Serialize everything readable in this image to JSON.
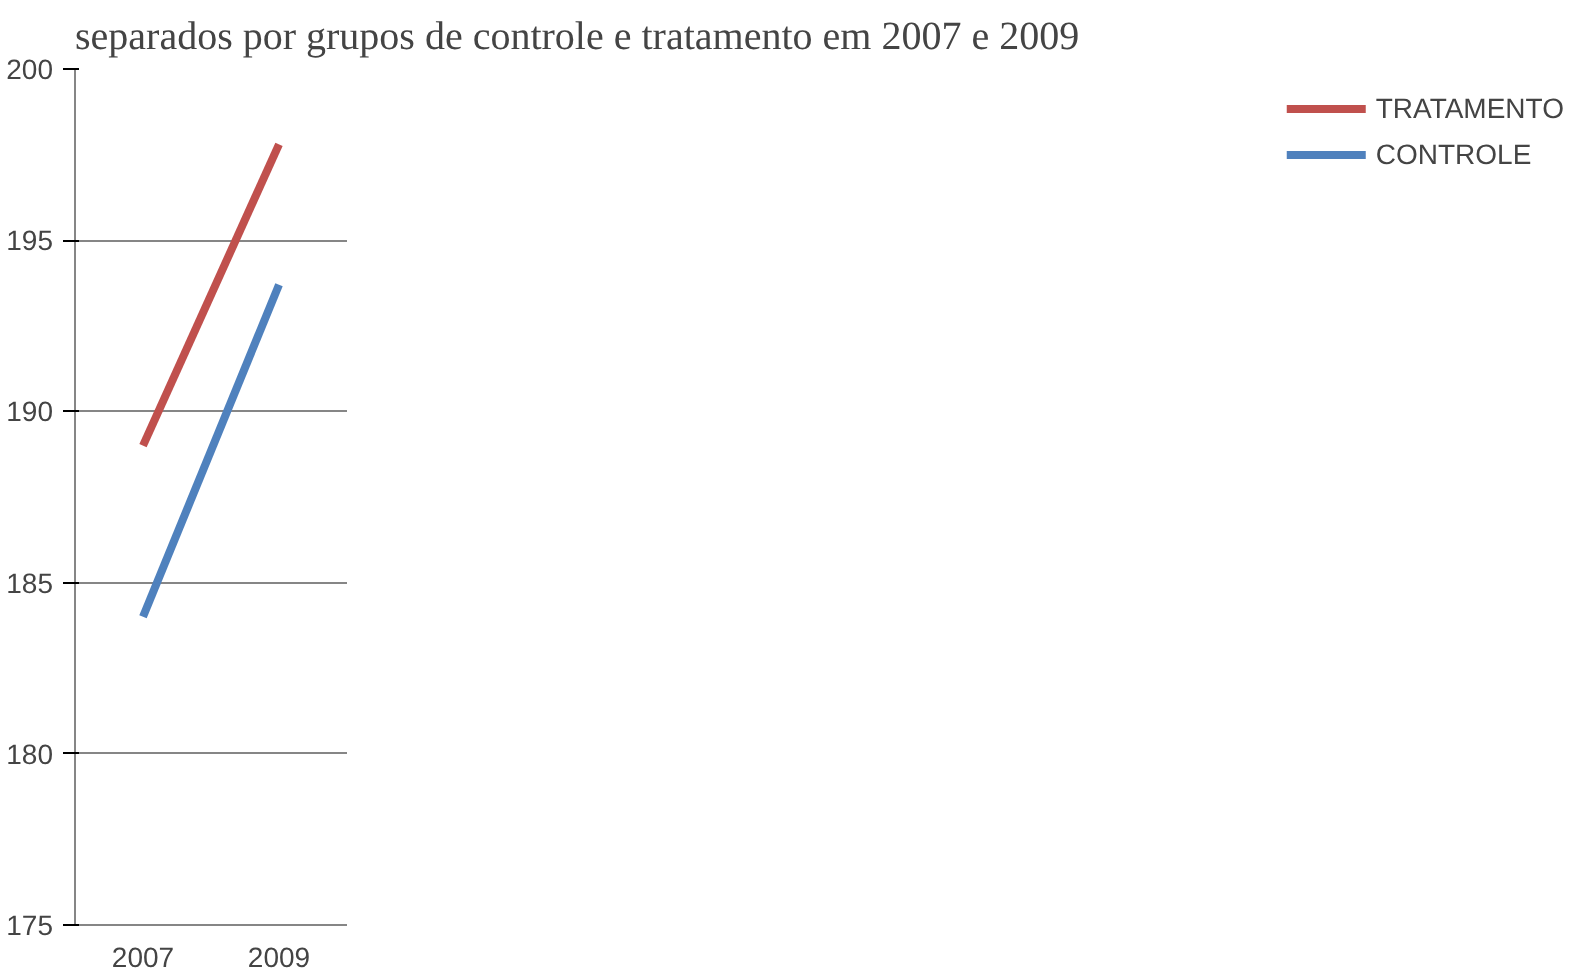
{
  "chart_data": {
    "type": "line",
    "title": "separados por grupos de controle e tratamento em 2007 e 2009",
    "categories": [
      "2007",
      "2009"
    ],
    "series": [
      {
        "name": "TRATAMENTO",
        "color": "#c0504d",
        "values": [
          189.0,
          197.8
        ]
      },
      {
        "name": "CONTROLE",
        "color": "#4f81bd",
        "values": [
          184.0,
          193.7
        ]
      }
    ],
    "ylim": [
      175,
      200
    ],
    "yticks": [
      175,
      180,
      185,
      190,
      195,
      200
    ],
    "grid": "y",
    "legend": "right",
    "marker": "none",
    "line_style": "solid"
  }
}
